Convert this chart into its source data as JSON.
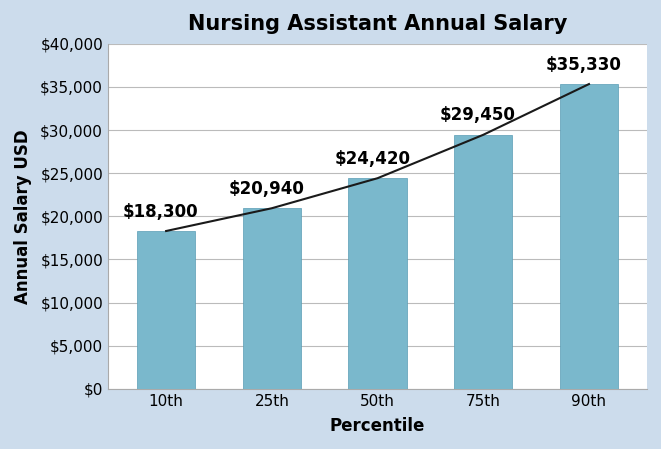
{
  "title": "Nursing Assistant Annual Salary",
  "xlabel": "Percentile",
  "ylabel": "Annual Salary USD",
  "categories": [
    "10th",
    "25th",
    "50th",
    "75th",
    "90th"
  ],
  "values": [
    18300,
    20940,
    24420,
    29450,
    35330
  ],
  "bar_color": "#7ab8cc",
  "bar_edge_color": "#5a9db5",
  "line_color": "#1a1a1a",
  "figure_bg_color": "#ccdcec",
  "plot_bg_color": "#ffffff",
  "grid_color": "#bbbbbb",
  "ylim": [
    0,
    40000
  ],
  "ytick_step": 5000,
  "labels": [
    "$18,300",
    "$20,940",
    "$24,420",
    "$29,450",
    "$35,330"
  ],
  "title_fontsize": 15,
  "axis_label_fontsize": 12,
  "tick_fontsize": 11,
  "bar_label_fontsize": 12,
  "bar_width": 0.55
}
